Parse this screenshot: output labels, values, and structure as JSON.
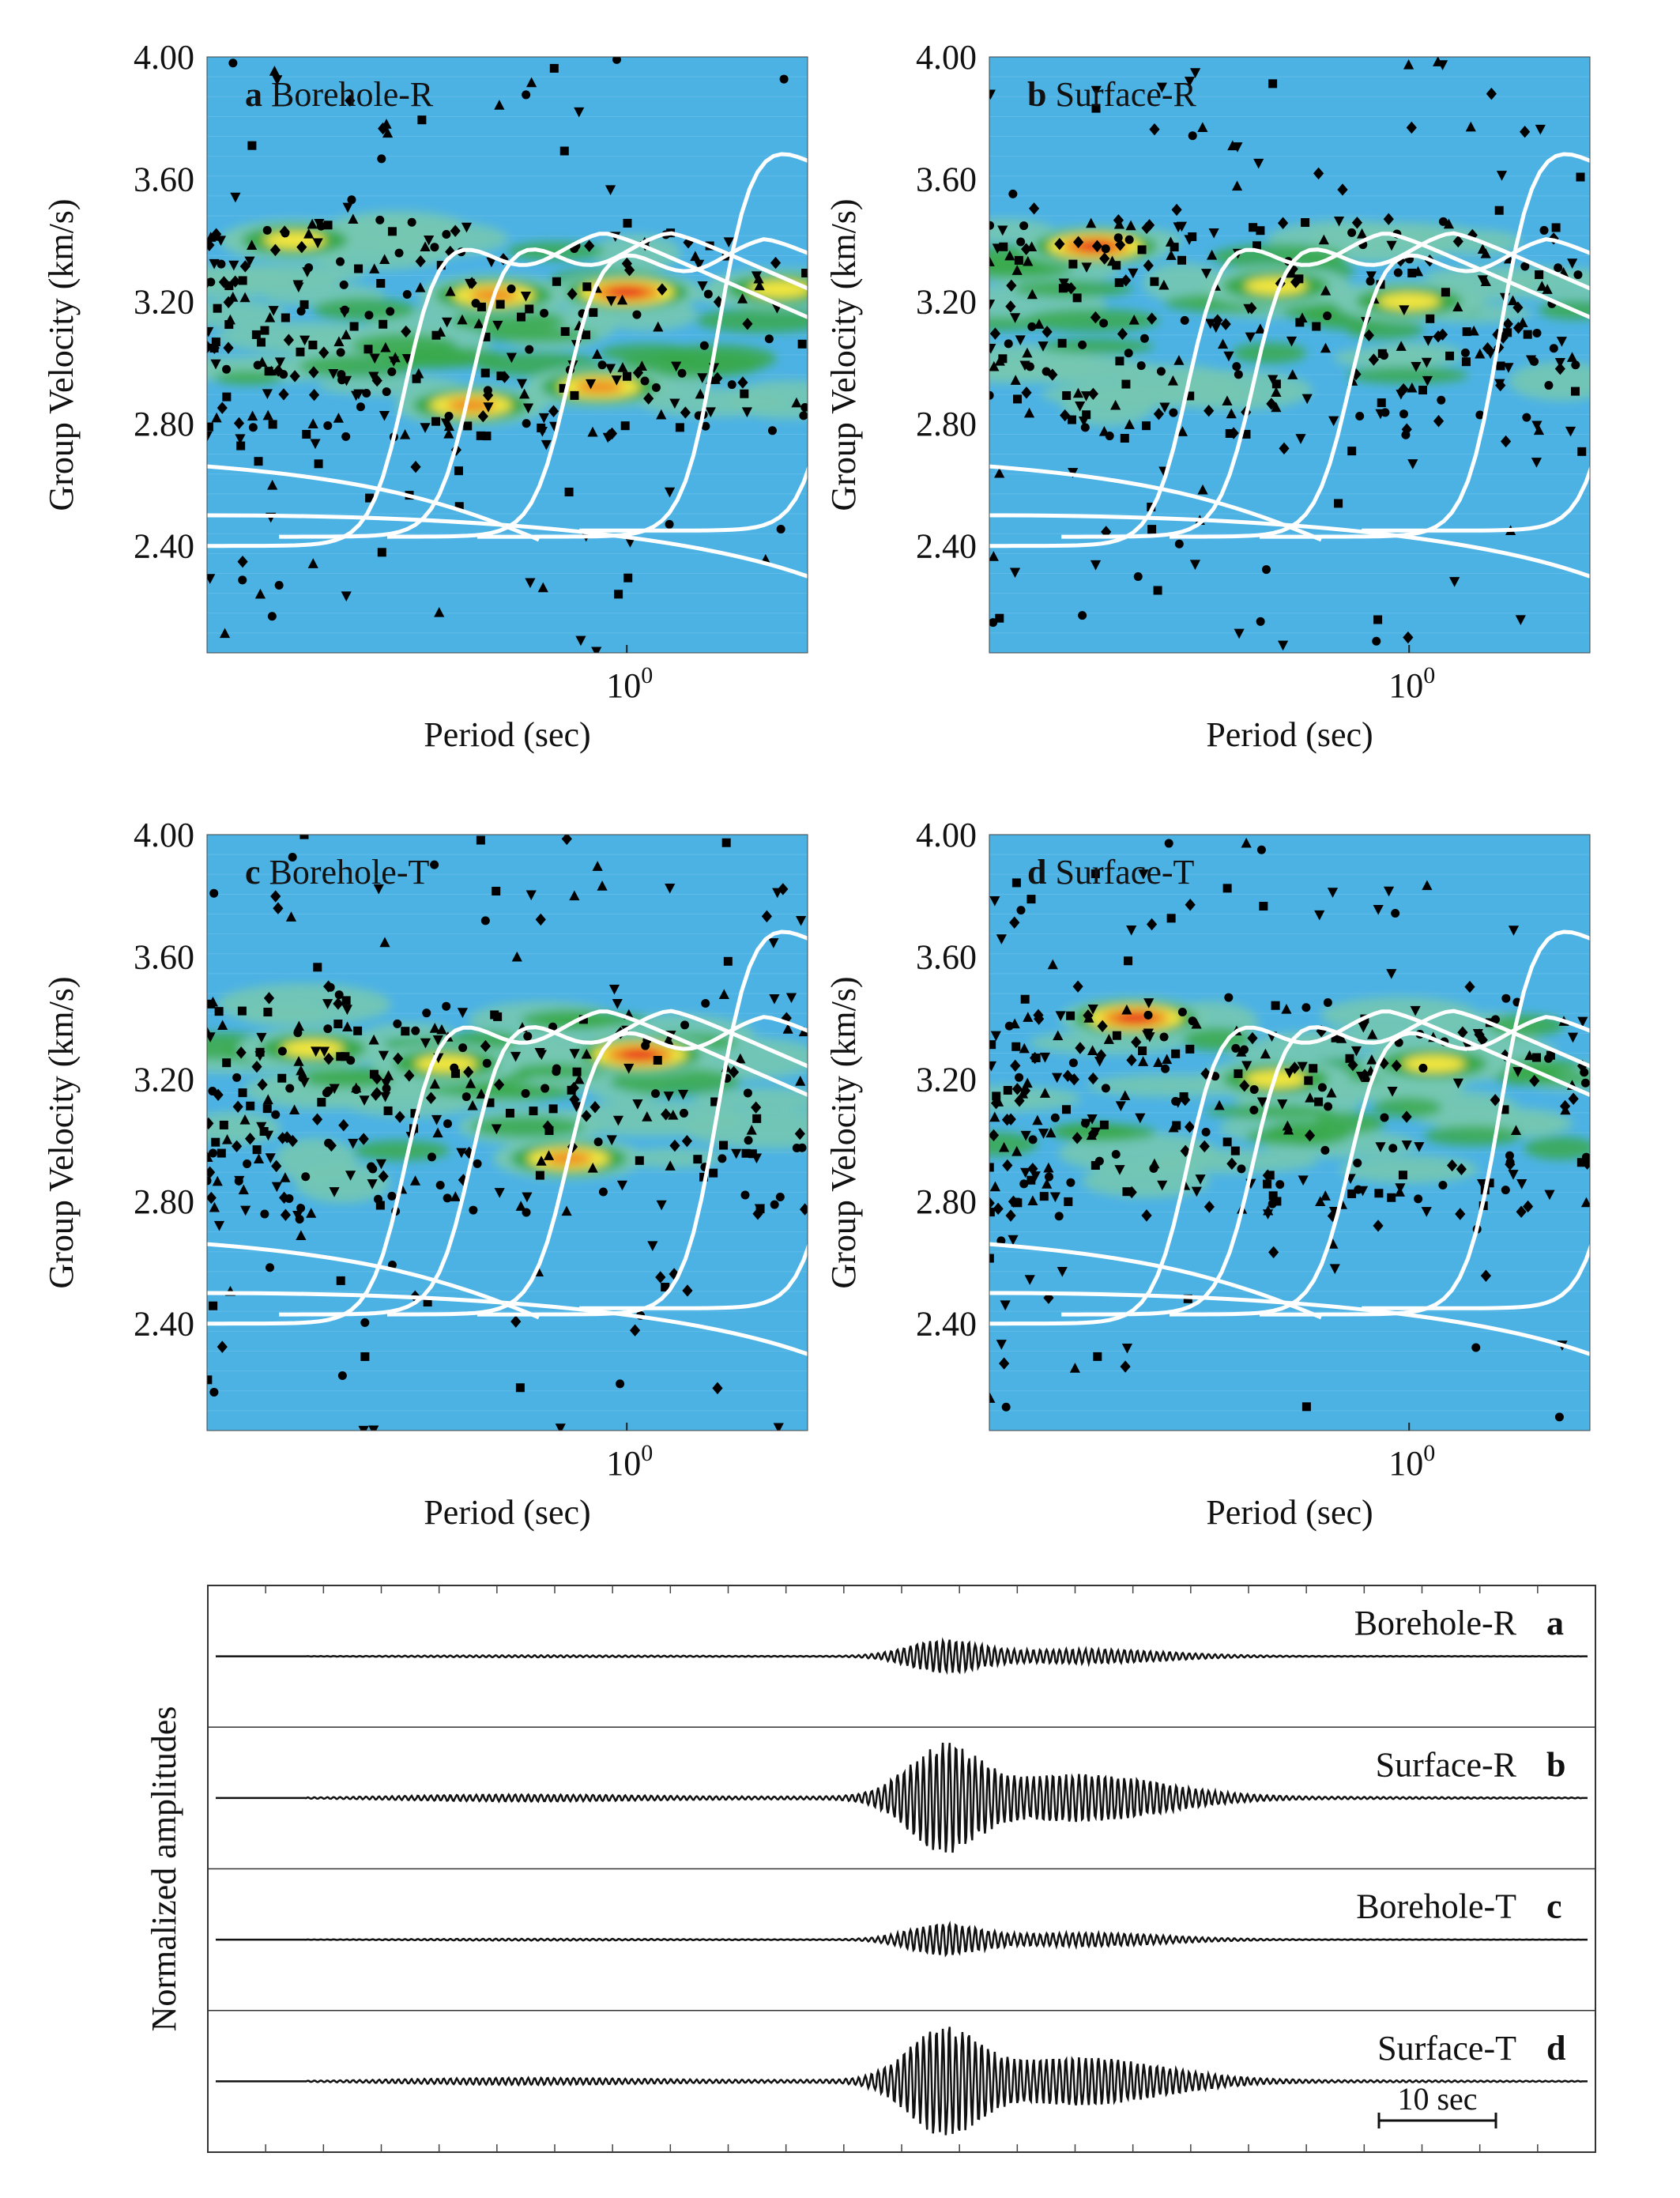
{
  "colors": {
    "background_field": "#4cb2e4",
    "contour_low": "#74c7b2",
    "contour_mid": "#3aa94c",
    "contour_high": "#f2e640",
    "contour_peak": "#e8251c",
    "dispersion_curve": "#ffffff",
    "marker": "#000000"
  },
  "chart_data": [
    {
      "type": "heatmap",
      "panel_letter": "a",
      "panel_name": "Borehole-R",
      "xlabel": "Period (sec)",
      "ylabel": "Group Velocity (km/s)",
      "xscale": "log",
      "xlim": [
        0.2,
        2.0
      ],
      "x_tick_labels": [
        {
          "x": 1.0,
          "base": "10",
          "exp": "0"
        }
      ],
      "ylim": [
        2.05,
        4.0
      ],
      "y_ticks": [
        "2.40",
        "2.80",
        "3.20",
        "3.60",
        "4.00"
      ],
      "energy_peaks": [
        {
          "period": 1.0,
          "velocity": 3.23,
          "level": 4
        },
        {
          "period": 0.6,
          "velocity": 3.22,
          "level": 3
        },
        {
          "period": 0.55,
          "velocity": 2.86,
          "level": 3
        },
        {
          "period": 0.9,
          "velocity": 2.92,
          "level": 3
        },
        {
          "period": 1.8,
          "velocity": 3.24,
          "level": 2
        },
        {
          "period": 0.28,
          "velocity": 3.4,
          "level": 2
        }
      ]
    },
    {
      "type": "heatmap",
      "panel_letter": "b",
      "panel_name": "Surface-R",
      "xlabel": "Period (sec)",
      "ylabel": "Group Velocity (km/s)",
      "xscale": "log",
      "xlim": [
        0.2,
        2.0
      ],
      "x_tick_labels": [
        {
          "x": 1.0,
          "base": "10",
          "exp": "0"
        }
      ],
      "ylim": [
        2.05,
        4.0
      ],
      "y_ticks": [
        "2.40",
        "2.80",
        "3.20",
        "3.60",
        "4.00"
      ],
      "energy_peaks": [
        {
          "period": 0.3,
          "velocity": 3.38,
          "level": 4
        },
        {
          "period": 0.6,
          "velocity": 3.25,
          "level": 2
        },
        {
          "period": 1.0,
          "velocity": 3.2,
          "level": 2
        }
      ]
    },
    {
      "type": "heatmap",
      "panel_letter": "c",
      "panel_name": "Borehole-T",
      "xlabel": "Period (sec)",
      "ylabel": "Group Velocity (km/s)",
      "xscale": "log",
      "xlim": [
        0.2,
        2.0
      ],
      "x_tick_labels": [
        {
          "x": 1.0,
          "base": "10",
          "exp": "0"
        }
      ],
      "ylim": [
        2.05,
        4.0
      ],
      "y_ticks": [
        "2.40",
        "2.80",
        "3.20",
        "3.60",
        "4.00"
      ],
      "energy_peaks": [
        {
          "period": 1.05,
          "velocity": 3.28,
          "level": 4
        },
        {
          "period": 0.8,
          "velocity": 2.94,
          "level": 3
        },
        {
          "period": 0.5,
          "velocity": 3.25,
          "level": 2
        },
        {
          "period": 0.3,
          "velocity": 3.3,
          "level": 2
        }
      ]
    },
    {
      "type": "heatmap",
      "panel_letter": "d",
      "panel_name": "Surface-T",
      "xlabel": "Period (sec)",
      "ylabel": "Group Velocity (km/s)",
      "xscale": "log",
      "xlim": [
        0.2,
        2.0
      ],
      "x_tick_labels": [
        {
          "x": 1.0,
          "base": "10",
          "exp": "0"
        }
      ],
      "ylim": [
        2.05,
        4.0
      ],
      "y_ticks": [
        "2.40",
        "2.80",
        "3.20",
        "3.60",
        "4.00"
      ],
      "energy_peaks": [
        {
          "period": 0.35,
          "velocity": 3.4,
          "level": 4
        },
        {
          "period": 0.6,
          "velocity": 3.2,
          "level": 2
        },
        {
          "period": 1.1,
          "velocity": 3.25,
          "level": 2
        }
      ]
    },
    {
      "type": "line",
      "ylabel": "Normalized amplitudes",
      "scale_bar_label": "10 sec",
      "series": [
        {
          "name": "Borehole-R",
          "letter": "a",
          "amplitude": 0.3
        },
        {
          "name": "Surface-R",
          "letter": "b",
          "amplitude": 1.0
        },
        {
          "name": "Borehole-T",
          "letter": "c",
          "amplitude": 0.28
        },
        {
          "name": "Surface-T",
          "letter": "d",
          "amplitude": 1.0
        }
      ]
    }
  ]
}
